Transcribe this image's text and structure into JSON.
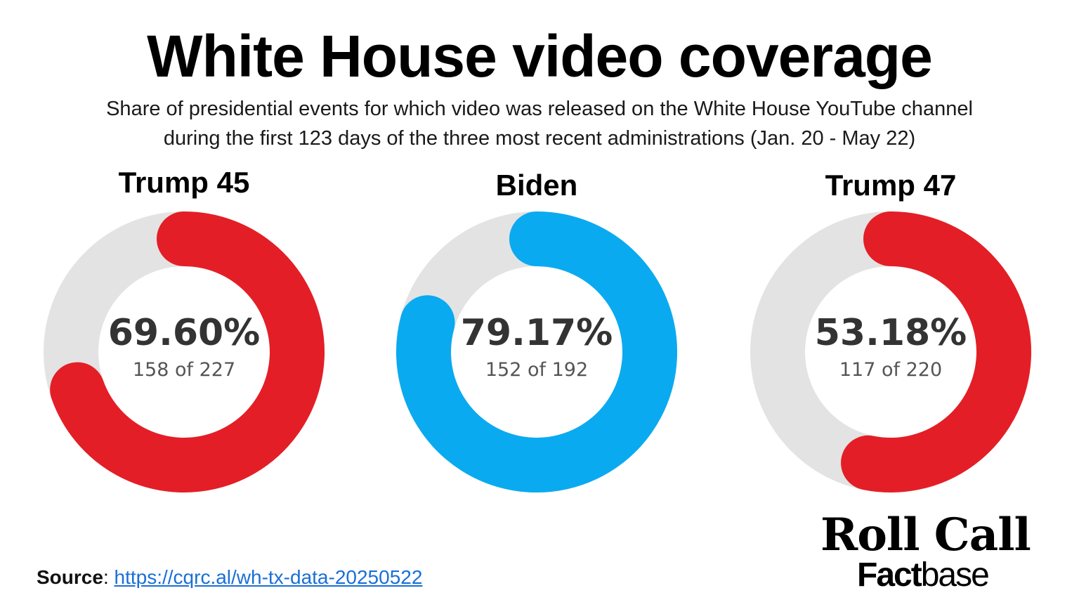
{
  "title": "White House video coverage",
  "subtitle": {
    "line1": "Share of presidential events for which video was released on the White House YouTube channel",
    "line2": "during the first 123 days of the three most recent administrations (Jan. 20 - May 22)"
  },
  "chart_data": [
    {
      "type": "pie",
      "style": "donut",
      "title": "Trump 45",
      "value_label": "69.60%",
      "count_label": "158 of 227",
      "share": 0.696,
      "numerator": 158,
      "denominator": 227,
      "color": "#e41e26",
      "track_color": "#e3e3e3"
    },
    {
      "type": "pie",
      "style": "donut",
      "title": "Biden",
      "value_label": "79.17%",
      "count_label": "152 of 192",
      "share": 0.7917,
      "numerator": 152,
      "denominator": 192,
      "color": "#0aaaf0",
      "track_color": "#e3e3e3"
    },
    {
      "type": "pie",
      "style": "donut",
      "title": "Trump 47",
      "value_label": "53.18%",
      "count_label": "117 of 220",
      "share": 0.5318,
      "numerator": 117,
      "denominator": 220,
      "color": "#e41e26",
      "track_color": "#e3e3e3"
    }
  ],
  "source": {
    "label": "Source",
    "separator": ": ",
    "link_text": "https://cqrc.al/wh-tx-data-20250522"
  },
  "logo": {
    "top": "Roll Call",
    "bottom_bold": "Fact",
    "bottom_light": "base"
  }
}
